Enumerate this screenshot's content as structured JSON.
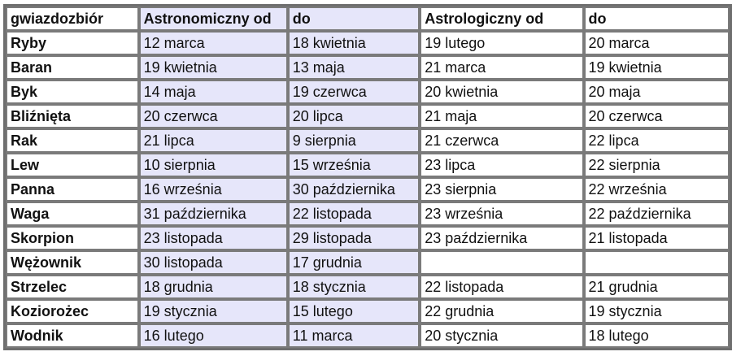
{
  "colors": {
    "astronomical_bg": "#e6e6fa",
    "border": "#7a7a7a"
  },
  "table": {
    "headers": [
      "gwiazdozbiór",
      "Astronomiczny od",
      "do",
      "Astrologiczny od",
      "do"
    ],
    "rows": [
      [
        "Ryby",
        "12 marca",
        "18 kwietnia",
        "19 lutego",
        "20 marca"
      ],
      [
        "Baran",
        "19 kwietnia",
        "13 maja",
        "21 marca",
        "19 kwietnia"
      ],
      [
        "Byk",
        "14 maja",
        "19 czerwca",
        "20 kwietnia",
        "20 maja"
      ],
      [
        "Bliźnięta",
        "20 czerwca",
        "20 lipca",
        "21 maja",
        "20 czerwca"
      ],
      [
        "Rak",
        "21 lipca",
        "9 sierpnia",
        "21 czerwca",
        "22 lipca"
      ],
      [
        "Lew",
        "10 sierpnia",
        "15 września",
        "23 lipca",
        "22 sierpnia"
      ],
      [
        "Panna",
        "16 września",
        "30 października",
        "23 sierpnia",
        "22 września"
      ],
      [
        "Waga",
        "31 października",
        "22 listopada",
        "23 września",
        "22 października"
      ],
      [
        "Skorpion",
        "23 listopada",
        "29 listopada",
        "23 października",
        "21 listopada"
      ],
      [
        "Wężownik",
        "30 listopada",
        "17 grudnia",
        "",
        ""
      ],
      [
        "Strzelec",
        "18 grudnia",
        "18 stycznia",
        "22 listopada",
        "21 grudnia"
      ],
      [
        "Koziorożec",
        "19 stycznia",
        "15 lutego",
        "22 grudnia",
        "19 stycznia"
      ],
      [
        "Wodnik",
        "16 lutego",
        "11 marca",
        "20 stycznia",
        "18 lutego"
      ]
    ]
  }
}
